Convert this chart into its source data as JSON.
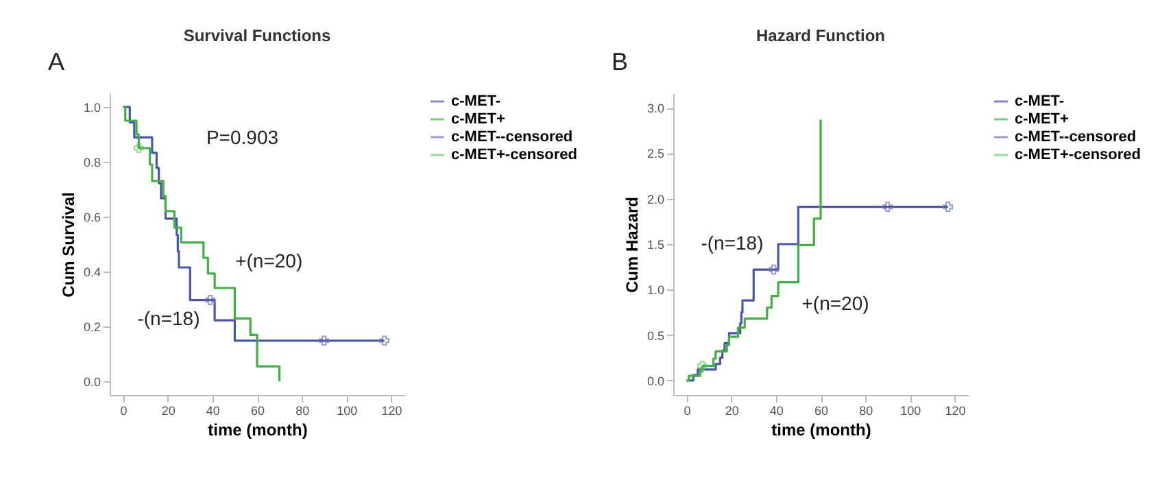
{
  "chart_data": [
    {
      "type": "step",
      "title": "Survival Functions",
      "xlabel": "time (month)",
      "ylabel": "Cum Survival",
      "xlim": [
        -6,
        126
      ],
      "xticks": [
        0,
        20,
        40,
        60,
        80,
        100,
        120
      ],
      "ylim": [
        -0.05,
        1.05
      ],
      "yticks": [
        {
          "value": 0,
          "label": "0.0"
        },
        {
          "value": 0.2,
          "label": "0.2"
        },
        {
          "value": 0.4,
          "label": "0.4"
        },
        {
          "value": 0.6,
          "label": "0.6"
        },
        {
          "value": 0.8,
          "label": "0.8"
        },
        {
          "value": 1,
          "label": "1.0"
        }
      ],
      "grid": false,
      "legend": "top right",
      "annotations": [
        "A",
        "P=0.903",
        "+(n=20)",
        "-(n=18)"
      ],
      "series": [
        {
          "name": "c-MET-",
          "color": "#4a56a6",
          "x": [
            0,
            3,
            5,
            13,
            15,
            16,
            17,
            19,
            24,
            24.5,
            25,
            30,
            41,
            50,
            117
          ],
          "values": [
            1,
            0.944,
            0.889,
            0.833,
            0.778,
            0.722,
            0.667,
            0.593,
            0.533,
            0.474,
            0.415,
            0.296,
            0.222,
            0.148,
            0.148
          ]
        },
        {
          "name": "c-MET+",
          "color": "#3fb044",
          "x": [
            0,
            1,
            6,
            7,
            12,
            13,
            18,
            19,
            23,
            26,
            36,
            38,
            41,
            50,
            57,
            60,
            70
          ],
          "values": [
            1,
            0.95,
            0.9,
            0.85,
            0.79,
            0.73,
            0.675,
            0.62,
            0.56,
            0.506,
            0.45,
            0.393,
            0.34,
            0.229,
            0.169,
            0.054,
            0
          ]
        },
        {
          "name": "c-MET--censored",
          "type": "scatter",
          "marker": "cross",
          "color": "#6b74b8",
          "x": [
            39,
            90,
            117
          ],
          "values": [
            0.296,
            0.148,
            0.148
          ]
        },
        {
          "name": "c-MET+-censored",
          "type": "scatter",
          "marker": "cross",
          "color": "#6cc46f",
          "x": [
            7
          ],
          "values": [
            0.85
          ]
        }
      ]
    },
    {
      "type": "step",
      "title": "Hazard Function",
      "xlabel": "time (month)",
      "ylabel": "Cum Hazard",
      "xlim": [
        -6,
        126
      ],
      "xticks": [
        0,
        20,
        40,
        60,
        80,
        100,
        120
      ],
      "ylim": [
        -0.16,
        3.16
      ],
      "yticks": [
        {
          "value": 0,
          "label": "0.0"
        },
        {
          "value": 0.5,
          "label": "0.5"
        },
        {
          "value": 1,
          "label": "1.0"
        },
        {
          "value": 1.5,
          "label": "1.5"
        },
        {
          "value": 2,
          "label": "2.0"
        },
        {
          "value": 2.5,
          "label": "2.5"
        },
        {
          "value": 3,
          "label": "3.0"
        }
      ],
      "grid": false,
      "legend": "top right",
      "annotations": [
        "B",
        "-(n=18)",
        "+(n=20)"
      ],
      "series": [
        {
          "name": "c-MET-",
          "color": "#4a56a6",
          "x": [
            0,
            3,
            5,
            13,
            15,
            16,
            17,
            19,
            24,
            24.5,
            25,
            30,
            41,
            50,
            117
          ],
          "values": [
            0,
            0.06,
            0.12,
            0.18,
            0.25,
            0.33,
            0.41,
            0.52,
            0.63,
            0.75,
            0.88,
            1.22,
            1.5,
            1.91,
            1.91
          ]
        },
        {
          "name": "c-MET+",
          "color": "#3fb044",
          "x": [
            0,
            1,
            6,
            7,
            12,
            13,
            18,
            19,
            23,
            26,
            36,
            38,
            41,
            50,
            57,
            60
          ],
          "values": [
            0,
            0.05,
            0.1,
            0.16,
            0.24,
            0.32,
            0.39,
            0.48,
            0.58,
            0.68,
            0.8,
            0.93,
            1.08,
            1.49,
            1.78,
            2.87
          ]
        },
        {
          "name": "c-MET--censored",
          "type": "scatter",
          "marker": "cross",
          "color": "#6b74b8",
          "x": [
            39,
            90,
            117
          ],
          "values": [
            1.22,
            1.91,
            1.91
          ]
        },
        {
          "name": "c-MET+-censored",
          "type": "scatter",
          "marker": "cross",
          "color": "#6cc46f",
          "x": [
            7
          ],
          "values": [
            0.16
          ]
        }
      ]
    }
  ]
}
